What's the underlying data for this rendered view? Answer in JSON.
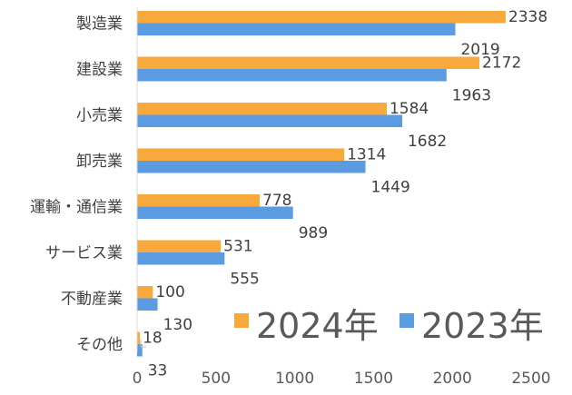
{
  "chart_data": {
    "type": "bar",
    "orientation": "horizontal",
    "categories": [
      "製造業",
      "建設業",
      "小売業",
      "卸売業",
      "運輸・通信業",
      "サービス業",
      "不動産業",
      "その他"
    ],
    "series": [
      {
        "name": "2024年",
        "color": "#F7A93B",
        "values": [
          2338,
          2172,
          1584,
          1314,
          778,
          531,
          100,
          18
        ]
      },
      {
        "name": "2023年",
        "color": "#5B9BE1",
        "values": [
          2019,
          1963,
          1682,
          1449,
          989,
          555,
          130,
          33
        ]
      }
    ],
    "xlim": [
      0,
      2500
    ],
    "xticks": [
      "0",
      "500",
      "1000",
      "1500",
      "2000",
      "2500"
    ],
    "legend_position": "bottom-right, inside plot",
    "grid": false,
    "title": "",
    "xlabel": "",
    "ylabel": ""
  }
}
